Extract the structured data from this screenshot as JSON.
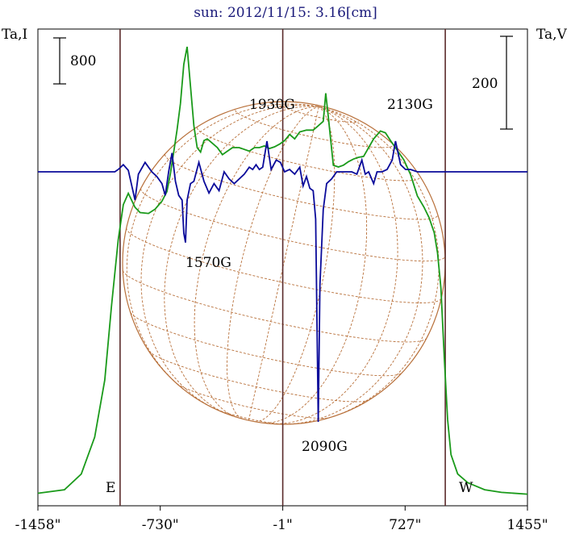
{
  "title": "sun: 2012/11/15: 3.16[cm]",
  "left_axis_label": "Ta,I",
  "right_axis_label": "Ta,V",
  "scale_left": "800",
  "scale_right": "200",
  "east_label": "E",
  "west_label": "W",
  "colors": {
    "intensity": "#1a9a1a",
    "polarization": "#0a0a9a",
    "disk": "#b8703a",
    "frame": "#5a2a2a"
  },
  "chart_data": {
    "type": "line",
    "title": "sun: 2012/11/15: 3.16[cm]",
    "xlabel": "",
    "ylabel_left": "Ta,I",
    "ylabel_right": "Ta,V",
    "xlim": [
      -1458,
      1455
    ],
    "x_ticks": [
      -1458,
      -730,
      -1,
      727,
      1455
    ],
    "x_tick_labels": [
      "-1458\"",
      "-730\"",
      "-1\"",
      "727\"",
      "1455\""
    ],
    "vertical_lines": [
      -969,
      -1,
      966
    ],
    "scale_bars": [
      {
        "axis": "left",
        "label": "800"
      },
      {
        "axis": "right",
        "label": "200"
      }
    ],
    "annotations": [
      "1930G",
      "2130G",
      "1570G",
      "2090G"
    ],
    "series": [
      {
        "name": "Ta,I",
        "values": [
          [
            -1458,
            60
          ],
          [
            -1300,
            100
          ],
          [
            -1200,
            280
          ],
          [
            -1120,
            700
          ],
          [
            -1060,
            1350
          ],
          [
            -1020,
            2200
          ],
          [
            -980,
            2950
          ],
          [
            -950,
            3350
          ],
          [
            -920,
            3480
          ],
          [
            -880,
            3320
          ],
          [
            -850,
            3260
          ],
          [
            -800,
            3250
          ],
          [
            -760,
            3300
          ],
          [
            -720,
            3390
          ],
          [
            -690,
            3500
          ],
          [
            -670,
            3700
          ],
          [
            -650,
            3950
          ],
          [
            -630,
            4200
          ],
          [
            -610,
            4500
          ],
          [
            -590,
            4950
          ],
          [
            -570,
            5150
          ],
          [
            -550,
            4700
          ],
          [
            -530,
            4250
          ],
          [
            -510,
            4000
          ],
          [
            -490,
            3950
          ],
          [
            -470,
            4080
          ],
          [
            -450,
            4100
          ],
          [
            -420,
            4050
          ],
          [
            -390,
            4000
          ],
          [
            -360,
            3920
          ],
          [
            -330,
            3960
          ],
          [
            -300,
            4000
          ],
          [
            -260,
            4000
          ],
          [
            -230,
            3980
          ],
          [
            -200,
            3960
          ],
          [
            -170,
            4000
          ],
          [
            -140,
            4000
          ],
          [
            -110,
            4020
          ],
          [
            -80,
            3990
          ],
          [
            -50,
            4010
          ],
          [
            -20,
            4040
          ],
          [
            10,
            4080
          ],
          [
            40,
            4150
          ],
          [
            70,
            4100
          ],
          [
            100,
            4180
          ],
          [
            140,
            4200
          ],
          [
            180,
            4200
          ],
          [
            210,
            4250
          ],
          [
            240,
            4300
          ],
          [
            255,
            4620
          ],
          [
            270,
            4350
          ],
          [
            300,
            3800
          ],
          [
            330,
            3780
          ],
          [
            360,
            3800
          ],
          [
            390,
            3840
          ],
          [
            420,
            3870
          ],
          [
            450,
            3890
          ],
          [
            480,
            3900
          ],
          [
            510,
            4000
          ],
          [
            540,
            4100
          ],
          [
            580,
            4190
          ],
          [
            610,
            4170
          ],
          [
            640,
            4080
          ],
          [
            680,
            3970
          ],
          [
            720,
            3860
          ],
          [
            760,
            3690
          ],
          [
            800,
            3450
          ],
          [
            840,
            3320
          ],
          [
            870,
            3200
          ],
          [
            900,
            3030
          ],
          [
            920,
            2800
          ],
          [
            940,
            2400
          ],
          [
            960,
            1600
          ],
          [
            980,
            900
          ],
          [
            1000,
            500
          ],
          [
            1040,
            280
          ],
          [
            1100,
            180
          ],
          [
            1200,
            100
          ],
          [
            1300,
            70
          ],
          [
            1455,
            50
          ]
        ]
      },
      {
        "name": "Ta,V",
        "values": [
          [
            -1458,
            0
          ],
          [
            -1100,
            0
          ],
          [
            -1000,
            0
          ],
          [
            -980,
            5
          ],
          [
            -950,
            15
          ],
          [
            -920,
            3
          ],
          [
            -880,
            -60
          ],
          [
            -860,
            -5
          ],
          [
            -820,
            20
          ],
          [
            -780,
            0
          ],
          [
            -750,
            -10
          ],
          [
            -720,
            -25
          ],
          [
            -700,
            -50
          ],
          [
            -680,
            0
          ],
          [
            -660,
            40
          ],
          [
            -640,
            -20
          ],
          [
            -620,
            -50
          ],
          [
            -600,
            -60
          ],
          [
            -590,
            -130
          ],
          [
            -580,
            -150
          ],
          [
            -570,
            -60
          ],
          [
            -550,
            -25
          ],
          [
            -530,
            -20
          ],
          [
            -500,
            20
          ],
          [
            -470,
            -20
          ],
          [
            -440,
            -45
          ],
          [
            -410,
            -25
          ],
          [
            -380,
            -40
          ],
          [
            -350,
            0
          ],
          [
            -320,
            -15
          ],
          [
            -290,
            -25
          ],
          [
            -260,
            -15
          ],
          [
            -230,
            -5
          ],
          [
            -200,
            10
          ],
          [
            -180,
            5
          ],
          [
            -160,
            15
          ],
          [
            -140,
            5
          ],
          [
            -120,
            10
          ],
          [
            -95,
            65
          ],
          [
            -70,
            5
          ],
          [
            -40,
            25
          ],
          [
            -15,
            20
          ],
          [
            10,
            0
          ],
          [
            40,
            5
          ],
          [
            70,
            -5
          ],
          [
            100,
            10
          ],
          [
            120,
            -30
          ],
          [
            140,
            -10
          ],
          [
            160,
            -35
          ],
          [
            180,
            -40
          ],
          [
            195,
            -100
          ],
          [
            210,
            -530
          ],
          [
            220,
            -240
          ],
          [
            240,
            -80
          ],
          [
            260,
            -25
          ],
          [
            290,
            -15
          ],
          [
            320,
            0
          ],
          [
            350,
            0
          ],
          [
            380,
            0
          ],
          [
            410,
            0
          ],
          [
            440,
            -5
          ],
          [
            470,
            25
          ],
          [
            490,
            -5
          ],
          [
            510,
            0
          ],
          [
            540,
            -25
          ],
          [
            560,
            0
          ],
          [
            590,
            0
          ],
          [
            620,
            5
          ],
          [
            650,
            25
          ],
          [
            670,
            65
          ],
          [
            700,
            15
          ],
          [
            730,
            5
          ],
          [
            760,
            5
          ],
          [
            800,
            0
          ],
          [
            1000,
            0
          ],
          [
            1455,
            0
          ]
        ]
      }
    ]
  }
}
